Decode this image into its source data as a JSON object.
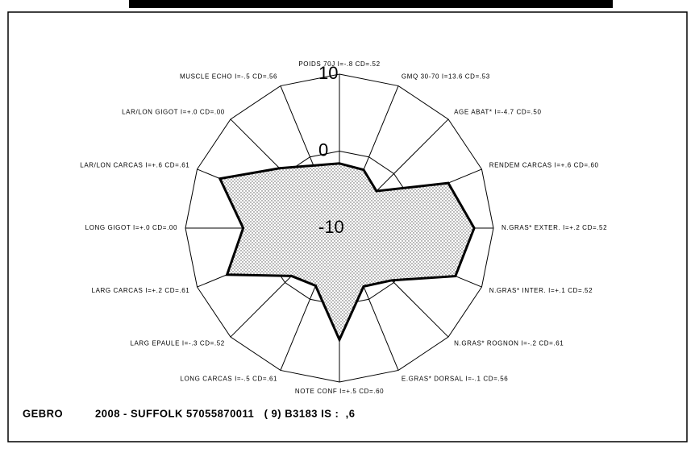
{
  "chart_data": {
    "type": "radar",
    "categories": [
      "POIDS 70J I=-.8 CD=.52",
      "GMQ 30-70 I=13.6 CD=.53",
      "AGE ABAT* I=-4.7 CD=.50",
      "RENDEM CARCAS I=+.6 CD=.60",
      "N.GRAS* EXTER. I=+.2 CD=.52",
      "N.GRAS* INTER. I=+.1 CD=.52",
      "N.GRAS* ROGNON I=-.2 CD=.61",
      "E.GRAS* DORSAL I=-.1 CD=.56",
      "NOTE CONF I=+.5 CD=.60",
      "LONG CARCAS I=-.5 CD=.61",
      "LARG EPAULE I=-.3 CD=.52",
      "LARG CARCAS I=+.2 CD=.61",
      "LONG GIGOT I=+.0 CD=.00",
      "LAR/LON CARCAS I=+.6 CD=.61",
      "LAR/LON GIGOT I=+.0 CD=.00",
      "MUSCLE ECHO I=-.5 CD=.56"
    ],
    "values": [
      -1.6,
      -1.8,
      -3.2,
      5.3,
      7.5,
      6.3,
      -0.4,
      -1.8,
      4.5,
      -1.9,
      -1.2,
      5.8,
      2.5,
      6.8,
      1.0,
      -1.2
    ],
    "color": "#000000",
    "rlim": [
      -10,
      10
    ],
    "rticks": [
      -10,
      0,
      10
    ],
    "footer": [
      "GEBRO",
      "2008 - SUFFOLK 57055870011   ( 9) B3183 IS :  ,6"
    ]
  }
}
